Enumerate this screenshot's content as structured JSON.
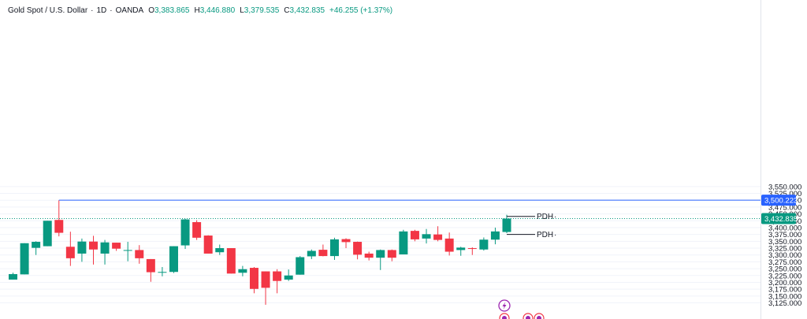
{
  "header": {
    "symbol": "Gold Spot / U.S. Dollar",
    "timeframe": "1D",
    "source": "OANDA",
    "open_label": "O",
    "open": "3,383.865",
    "high_label": "H",
    "high": "3,446.880",
    "low_label": "L",
    "low": "3,379.535",
    "close_label": "C",
    "close": "3,432.835",
    "change": "+46.255 (+1.37%)"
  },
  "colors": {
    "up": "#089981",
    "down": "#f23645",
    "level_line": "#2962ff",
    "last_price_line": "#089981",
    "grid": "#f0f3fa"
  },
  "icons": [
    "lightning-icon",
    "event-icon",
    "event-icon"
  ],
  "chart_data": {
    "type": "candlestick",
    "yaxis_ticks": [
      3125,
      3150,
      3175,
      3200,
      3225,
      3250,
      3275,
      3300,
      3325,
      3350,
      3375,
      3400,
      3425,
      3450,
      3475,
      3500,
      3525,
      3550
    ],
    "yaxis_tick_labels": [
      "3,125.000",
      "3,150.000",
      "3,175.000",
      "3,200.000",
      "3,225.000",
      "3,250.000",
      "3,275.000",
      "3,300.000",
      "3,325.000",
      "3,350.000",
      "3,375.000",
      "3,400.000",
      "3,425.000",
      "3,450.000",
      "3,475.000",
      "3,500.000",
      "3,525.000",
      "3,550.000"
    ],
    "ylim": [
      3100,
      3560
    ],
    "level_price": 3500.223,
    "level_label": "3,500.223",
    "last_price": 3432.835,
    "last_price_label": "3,432.835",
    "pdh_label": "PDH",
    "pdh_levels": [
      3441,
      3375
    ],
    "candles": [
      {
        "o": 3210,
        "h": 3235,
        "l": 3210,
        "c": 3230
      },
      {
        "o": 3229,
        "h": 3343,
        "l": 3229,
        "c": 3343
      },
      {
        "o": 3326,
        "h": 3350,
        "l": 3300,
        "c": 3348
      },
      {
        "o": 3332,
        "h": 3425,
        "l": 3332,
        "c": 3425
      },
      {
        "o": 3428,
        "h": 3500,
        "l": 3368,
        "c": 3381
      },
      {
        "o": 3330,
        "h": 3385,
        "l": 3260,
        "c": 3288
      },
      {
        "o": 3305,
        "h": 3360,
        "l": 3275,
        "c": 3349
      },
      {
        "o": 3349,
        "h": 3370,
        "l": 3265,
        "c": 3320
      },
      {
        "o": 3305,
        "h": 3355,
        "l": 3265,
        "c": 3346
      },
      {
        "o": 3345,
        "h": 3345,
        "l": 3315,
        "c": 3323
      },
      {
        "o": 3318,
        "h": 3348,
        "l": 3277,
        "c": 3318
      },
      {
        "o": 3318,
        "h": 3336,
        "l": 3268,
        "c": 3288
      },
      {
        "o": 3285,
        "h": 3285,
        "l": 3202,
        "c": 3237
      },
      {
        "o": 3238,
        "h": 3256,
        "l": 3222,
        "c": 3238
      },
      {
        "o": 3238,
        "h": 3332,
        "l": 3234,
        "c": 3332
      },
      {
        "o": 3335,
        "h": 3432,
        "l": 3322,
        "c": 3430
      },
      {
        "o": 3420,
        "h": 3427,
        "l": 3355,
        "c": 3363
      },
      {
        "o": 3371,
        "h": 3372,
        "l": 3305,
        "c": 3305
      },
      {
        "o": 3310,
        "h": 3338,
        "l": 3300,
        "c": 3325
      },
      {
        "o": 3325,
        "h": 3325,
        "l": 3232,
        "c": 3232
      },
      {
        "o": 3235,
        "h": 3260,
        "l": 3222,
        "c": 3248
      },
      {
        "o": 3253,
        "h": 3256,
        "l": 3160,
        "c": 3176
      },
      {
        "o": 3240,
        "h": 3240,
        "l": 3118,
        "c": 3180
      },
      {
        "o": 3240,
        "h": 3248,
        "l": 3160,
        "c": 3205
      },
      {
        "o": 3210,
        "h": 3247,
        "l": 3205,
        "c": 3225
      },
      {
        "o": 3228,
        "h": 3296,
        "l": 3228,
        "c": 3292
      },
      {
        "o": 3295,
        "h": 3320,
        "l": 3285,
        "c": 3315
      },
      {
        "o": 3319,
        "h": 3338,
        "l": 3295,
        "c": 3296
      },
      {
        "o": 3296,
        "h": 3363,
        "l": 3282,
        "c": 3357
      },
      {
        "o": 3358,
        "h": 3361,
        "l": 3325,
        "c": 3347
      },
      {
        "o": 3348,
        "h": 3349,
        "l": 3284,
        "c": 3301
      },
      {
        "o": 3305,
        "h": 3312,
        "l": 3280,
        "c": 3290
      },
      {
        "o": 3290,
        "h": 3320,
        "l": 3245,
        "c": 3318
      },
      {
        "o": 3318,
        "h": 3320,
        "l": 3277,
        "c": 3290
      },
      {
        "o": 3302,
        "h": 3392,
        "l": 3302,
        "c": 3386
      },
      {
        "o": 3388,
        "h": 3392,
        "l": 3350,
        "c": 3357
      },
      {
        "o": 3360,
        "h": 3395,
        "l": 3342,
        "c": 3376
      },
      {
        "o": 3375,
        "h": 3405,
        "l": 3350,
        "c": 3355
      },
      {
        "o": 3360,
        "h": 3382,
        "l": 3298,
        "c": 3312
      },
      {
        "o": 3318,
        "h": 3330,
        "l": 3297,
        "c": 3327
      },
      {
        "o": 3325,
        "h": 3328,
        "l": 3300,
        "c": 3322
      },
      {
        "o": 3320,
        "h": 3364,
        "l": 3316,
        "c": 3356
      },
      {
        "o": 3356,
        "h": 3400,
        "l": 3339,
        "c": 3386
      },
      {
        "o": 3384,
        "h": 3447,
        "l": 3380,
        "c": 3433
      }
    ]
  }
}
